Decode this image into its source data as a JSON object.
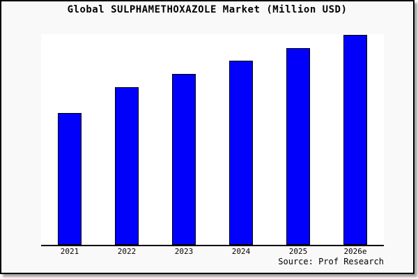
{
  "chart": {
    "title": "Global SULPHAMETHOXAZOLE Market (Million USD)",
    "source": "Source: Prof Research"
  },
  "chart_data": {
    "type": "bar",
    "title": "Global SULPHAMETHOXAZOLE Market (Million USD)",
    "categories": [
      "2021",
      "2022",
      "2023",
      "2024",
      "2025",
      "2026e"
    ],
    "values": [
      62.6,
      74.8,
      81.1,
      87.4,
      93.4,
      99.7
    ],
    "xlabel": "",
    "ylabel": "",
    "ylim": [
      0,
      100
    ],
    "grid": false,
    "legend": false,
    "note": "Y-axis is unlabeled in the source image; values are relative bar heights as percent of plot height (2026e is tallest, nearly touching the plot top).",
    "source": "Source: Prof Research",
    "colors": {
      "bar_fill": "#0101FB",
      "bar_edge": "#000000",
      "figure_bg": "#F9F9F9",
      "plot_bg": "#FFFFFF",
      "frame_border": "#000000",
      "text": "#000000"
    }
  }
}
